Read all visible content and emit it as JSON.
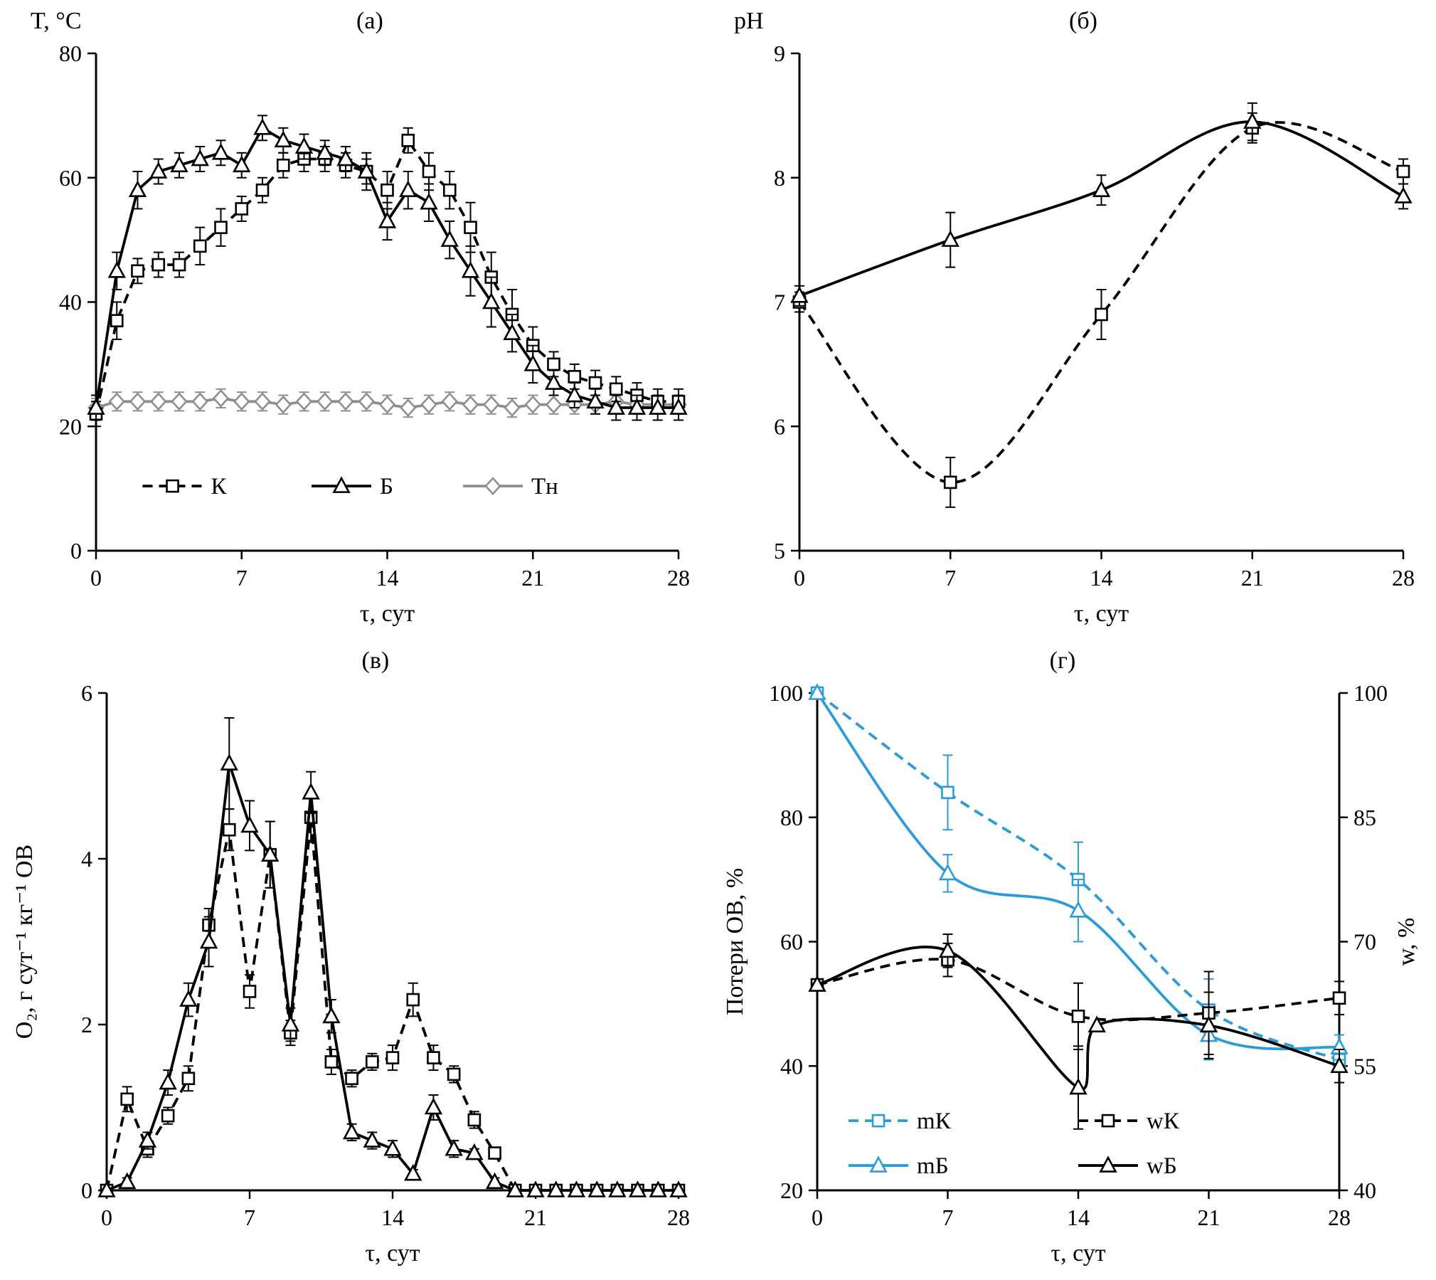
{
  "figure": {
    "background": "#ffffff",
    "description_panels": [
      "(а)",
      "(б)",
      "(в)",
      "(г)"
    ]
  },
  "colors": {
    "black": "#000000",
    "blue": "#2b9cd8",
    "gray": "#8f8f8f"
  },
  "chart_data": [
    {
      "id": "a",
      "type": "line",
      "title": "(а)",
      "xlabel": "τ, сут",
      "ylabel": "T, °C",
      "ylabel_pos": "top",
      "xlim": [
        0,
        28
      ],
      "xticks": [
        0,
        7,
        14,
        21,
        28
      ],
      "ylim": [
        0,
        80
      ],
      "yticks": [
        0,
        20,
        40,
        60,
        80
      ],
      "grid": false,
      "series": [
        {
          "name": "Тн",
          "color": "gray",
          "dash": false,
          "marker": "diamond",
          "smooth": false,
          "x": [
            0,
            1,
            2,
            3,
            4,
            5,
            6,
            7,
            8,
            9,
            10,
            11,
            12,
            13,
            14,
            15,
            16,
            17,
            18,
            19,
            20,
            21,
            22,
            23,
            24,
            25,
            26,
            27,
            28
          ],
          "y": [
            23,
            24,
            24,
            24,
            24,
            24,
            24.5,
            24,
            24,
            23.5,
            24,
            24,
            24,
            24,
            23.5,
            23,
            23.5,
            24,
            23.5,
            23.5,
            23,
            23.5,
            23.5,
            23.5,
            23.5,
            24,
            23.5,
            23.5,
            23.5
          ],
          "yerr": [
            1.5,
            1.5,
            1.5,
            1.5,
            1.5,
            1.5,
            1.5,
            1.5,
            1.5,
            1.5,
            1.5,
            1.5,
            1.5,
            1.5,
            1.5,
            1.5,
            1.5,
            1.5,
            1.5,
            1.5,
            1.5,
            1.5,
            1.5,
            1.5,
            1.5,
            1.5,
            1.5,
            1.5,
            1.5
          ]
        },
        {
          "name": "К",
          "color": "black",
          "dash": true,
          "marker": "square",
          "smooth": false,
          "x": [
            0,
            1,
            2,
            3,
            4,
            5,
            6,
            7,
            8,
            9,
            10,
            11,
            12,
            13,
            14,
            15,
            16,
            17,
            18,
            19,
            20,
            21,
            22,
            23,
            24,
            25,
            26,
            27,
            28
          ],
          "y": [
            22,
            37,
            45,
            46,
            46,
            49,
            52,
            55,
            58,
            62,
            63,
            63,
            62,
            61,
            58,
            66,
            61,
            58,
            52,
            44,
            38,
            33,
            30,
            28,
            27,
            26,
            25,
            24,
            24
          ],
          "yerr": [
            2,
            3,
            2,
            2,
            2,
            3,
            3,
            2,
            2,
            2,
            2,
            2,
            2,
            3,
            3,
            2,
            3,
            3,
            4,
            4,
            4,
            3,
            2,
            2,
            2,
            2,
            2,
            2,
            2
          ]
        },
        {
          "name": "Б",
          "color": "black",
          "dash": false,
          "marker": "triangle",
          "smooth": false,
          "x": [
            0,
            1,
            2,
            3,
            4,
            5,
            6,
            7,
            8,
            9,
            10,
            11,
            12,
            13,
            14,
            15,
            16,
            17,
            18,
            19,
            20,
            21,
            22,
            23,
            24,
            25,
            26,
            27,
            28
          ],
          "y": [
            23,
            45,
            58,
            61,
            62,
            63,
            64,
            62,
            68,
            66,
            65,
            64,
            63,
            61,
            53,
            58,
            56,
            50,
            45,
            40,
            35,
            30,
            27,
            25,
            24,
            23,
            23,
            23,
            23
          ],
          "yerr": [
            2,
            3,
            3,
            2,
            2,
            2,
            2,
            2,
            2,
            2,
            2,
            2,
            2,
            2,
            3,
            3,
            3,
            3,
            4,
            4,
            3,
            3,
            2,
            2,
            2,
            2,
            2,
            2,
            2
          ]
        }
      ],
      "legend": [
        {
          "series": "К",
          "label": "К",
          "fx": 0.08,
          "fy": 0.87
        },
        {
          "series": "Б",
          "label": "Б",
          "fx": 0.37,
          "fy": 0.87
        },
        {
          "series": "Тн",
          "label": "Тн",
          "fx": 0.63,
          "fy": 0.87
        }
      ]
    },
    {
      "id": "b",
      "type": "line",
      "title": "(б)",
      "xlabel": "τ, сут",
      "ylabel": "pH",
      "ylabel_pos": "top",
      "xlim": [
        0,
        28
      ],
      "xticks": [
        0,
        7,
        14,
        21,
        28
      ],
      "ylim": [
        5,
        9
      ],
      "yticks": [
        5,
        6,
        7,
        8,
        9
      ],
      "grid": false,
      "series": [
        {
          "name": "К",
          "color": "black",
          "dash": true,
          "marker": "square",
          "smooth": true,
          "x": [
            0,
            7,
            14,
            21,
            28
          ],
          "y": [
            7.0,
            5.55,
            6.9,
            8.4,
            8.05
          ],
          "yerr": [
            0.08,
            0.2,
            0.2,
            0.12,
            0.1
          ]
        },
        {
          "name": "Б",
          "color": "black",
          "dash": false,
          "marker": "triangle",
          "smooth": true,
          "x": [
            0,
            7,
            14,
            21,
            28
          ],
          "y": [
            7.05,
            7.5,
            7.9,
            8.45,
            7.85
          ],
          "yerr": [
            0.08,
            0.22,
            0.12,
            0.15,
            0.1
          ]
        }
      ]
    },
    {
      "id": "v",
      "type": "line",
      "title": "(в)",
      "xlabel": "τ, сут",
      "ylabel": "O₂, г сут⁻¹ кг⁻¹ ОВ",
      "ylabel_pos": "side",
      "xlim": [
        0,
        28
      ],
      "xticks": [
        0,
        7,
        14,
        21,
        28
      ],
      "ylim": [
        0,
        6
      ],
      "yticks": [
        0,
        2,
        4,
        6
      ],
      "grid": false,
      "series": [
        {
          "name": "К",
          "color": "black",
          "dash": true,
          "marker": "square",
          "smooth": false,
          "x": [
            0,
            1,
            2,
            3,
            4,
            5,
            6,
            7,
            8,
            9,
            10,
            11,
            12,
            13,
            14,
            15,
            16,
            17,
            18,
            19,
            20,
            21,
            22,
            23,
            24,
            25,
            26,
            27,
            28
          ],
          "y": [
            0,
            1.1,
            0.5,
            0.9,
            1.35,
            3.2,
            4.35,
            2.4,
            4.05,
            1.9,
            4.5,
            1.55,
            1.35,
            1.55,
            1.6,
            2.3,
            1.6,
            1.4,
            0.85,
            0.45,
            0,
            0,
            0,
            0,
            0,
            0,
            0,
            0,
            0
          ],
          "yerr": [
            0,
            0.15,
            0.1,
            0.1,
            0.15,
            0.2,
            0.25,
            0.2,
            0.4,
            0.15,
            0.3,
            0.15,
            0.1,
            0.1,
            0.15,
            0.2,
            0.15,
            0.1,
            0.1,
            0.05,
            0,
            0,
            0,
            0,
            0,
            0,
            0,
            0,
            0
          ]
        },
        {
          "name": "Б",
          "color": "black",
          "dash": false,
          "marker": "triangle",
          "smooth": false,
          "x": [
            0,
            1,
            2,
            3,
            4,
            5,
            6,
            7,
            8,
            9,
            10,
            11,
            12,
            13,
            14,
            15,
            16,
            17,
            18,
            19,
            20,
            21,
            22,
            23,
            24,
            25,
            26,
            27,
            28
          ],
          "y": [
            0,
            0.1,
            0.6,
            1.3,
            2.3,
            3.0,
            5.15,
            4.4,
            4.05,
            2.0,
            4.8,
            2.1,
            0.7,
            0.6,
            0.5,
            0.2,
            1.0,
            0.5,
            0.45,
            0.1,
            0,
            0,
            0,
            0,
            0,
            0,
            0,
            0,
            0
          ],
          "yerr": [
            0,
            0.05,
            0.1,
            0.15,
            0.2,
            0.3,
            0.55,
            0.3,
            0.4,
            0.2,
            0.25,
            0.2,
            0.1,
            0.1,
            0.1,
            0.05,
            0.15,
            0.1,
            0.05,
            0.05,
            0,
            0,
            0,
            0,
            0,
            0,
            0,
            0,
            0
          ]
        }
      ]
    },
    {
      "id": "g",
      "type": "line",
      "title": "(г)",
      "xlabel": "τ, сут",
      "ylabel": "Потери ОВ, %",
      "ylabel_pos": "side",
      "ylabel_right": "w, %",
      "xlim": [
        0,
        28
      ],
      "xticks": [
        0,
        7,
        14,
        21,
        28
      ],
      "ylim": [
        20,
        100
      ],
      "yticks": [
        20,
        40,
        60,
        80,
        100
      ],
      "ylim_right": [
        40,
        100
      ],
      "yticks_right": [
        40,
        55,
        70,
        85,
        100
      ],
      "grid": false,
      "series": [
        {
          "name": "mК",
          "color": "blue",
          "dash": true,
          "marker": "square",
          "smooth": true,
          "axis": "left",
          "x": [
            0,
            7,
            14,
            21,
            28
          ],
          "y": [
            100,
            84,
            70,
            49,
            41
          ],
          "yerr": [
            0,
            6,
            6,
            5,
            2
          ]
        },
        {
          "name": "mБ",
          "color": "blue",
          "dash": false,
          "marker": "triangle",
          "smooth": true,
          "axis": "left",
          "x": [
            0,
            7,
            14,
            21,
            28
          ],
          "y": [
            100,
            71,
            65,
            45,
            43
          ],
          "yerr": [
            0,
            3,
            5,
            4,
            2
          ]
        },
        {
          "name": "wК",
          "color": "black",
          "dash": true,
          "marker": "square",
          "smooth": true,
          "axis": "right",
          "x": [
            0,
            7,
            14,
            21,
            28
          ],
          "y": [
            64.8,
            67.8,
            61.0,
            61.4,
            63.2
          ],
          "yerr": [
            0,
            2,
            4,
            5,
            2
          ]
        },
        {
          "name": "wБ",
          "color": "black",
          "dash": false,
          "marker": "triangle",
          "smooth": true,
          "axis": "right",
          "x": [
            0,
            7,
            14,
            15,
            21,
            28
          ],
          "y": [
            64.8,
            68.9,
            52.4,
            59.9,
            59.9,
            55.0
          ],
          "yerr": [
            0,
            2,
            5,
            0,
            4,
            2
          ]
        }
      ],
      "legend": [
        {
          "series": "mК",
          "label": "mК",
          "fx": 0.06,
          "fy": 0.86
        },
        {
          "series": "wК",
          "label": "wК",
          "fx": 0.5,
          "fy": 0.86
        },
        {
          "series": "mБ",
          "label": "mБ",
          "fx": 0.06,
          "fy": 0.95
        },
        {
          "series": "wБ",
          "label": "wБ",
          "fx": 0.5,
          "fy": 0.95
        }
      ]
    }
  ]
}
